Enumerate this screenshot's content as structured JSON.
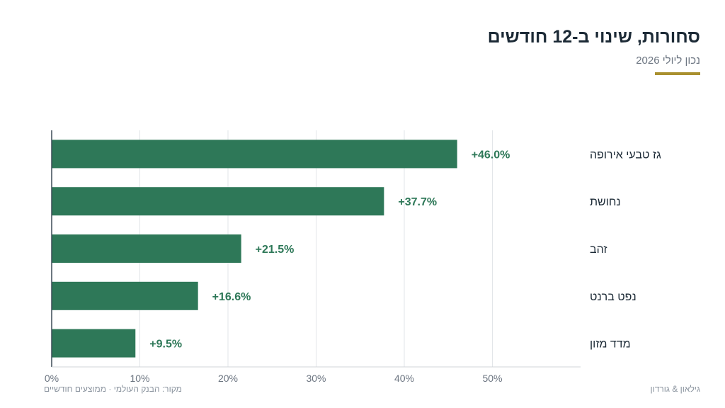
{
  "header": {
    "title": "סחורות, שינוי ב-12 חודשים",
    "subtitle": "נכון ליולי 2026"
  },
  "footer": {
    "source": "מקור: הבנק העולמי · ממוצעים חודשיים",
    "brand": "גילאון & גורדון"
  },
  "colors": {
    "bar": "#2e7858",
    "accent": "#a9902f",
    "value_text": "#2e7858"
  },
  "chart_data": {
    "type": "bar",
    "orientation": "horizontal",
    "title": "סחורות, שינוי ב-12 חודשים",
    "subtitle": "נכון ליולי 2026",
    "categories": [
      "גז טבעי אירופה",
      "נחושת",
      "זהב",
      "נפט ברנט",
      "מדד מזון"
    ],
    "values": [
      46.0,
      37.7,
      21.5,
      16.6,
      9.5
    ],
    "value_labels": [
      "+46.0%",
      "+37.7%",
      "+21.5%",
      "+16.6%",
      "+9.5%"
    ],
    "xlim": [
      0,
      60
    ],
    "xticks": [
      0,
      10,
      20,
      30,
      40,
      50
    ],
    "xtick_labels": [
      "0%",
      "10%",
      "20%",
      "30%",
      "40%",
      "50%"
    ],
    "grid": true,
    "legend": "none"
  }
}
